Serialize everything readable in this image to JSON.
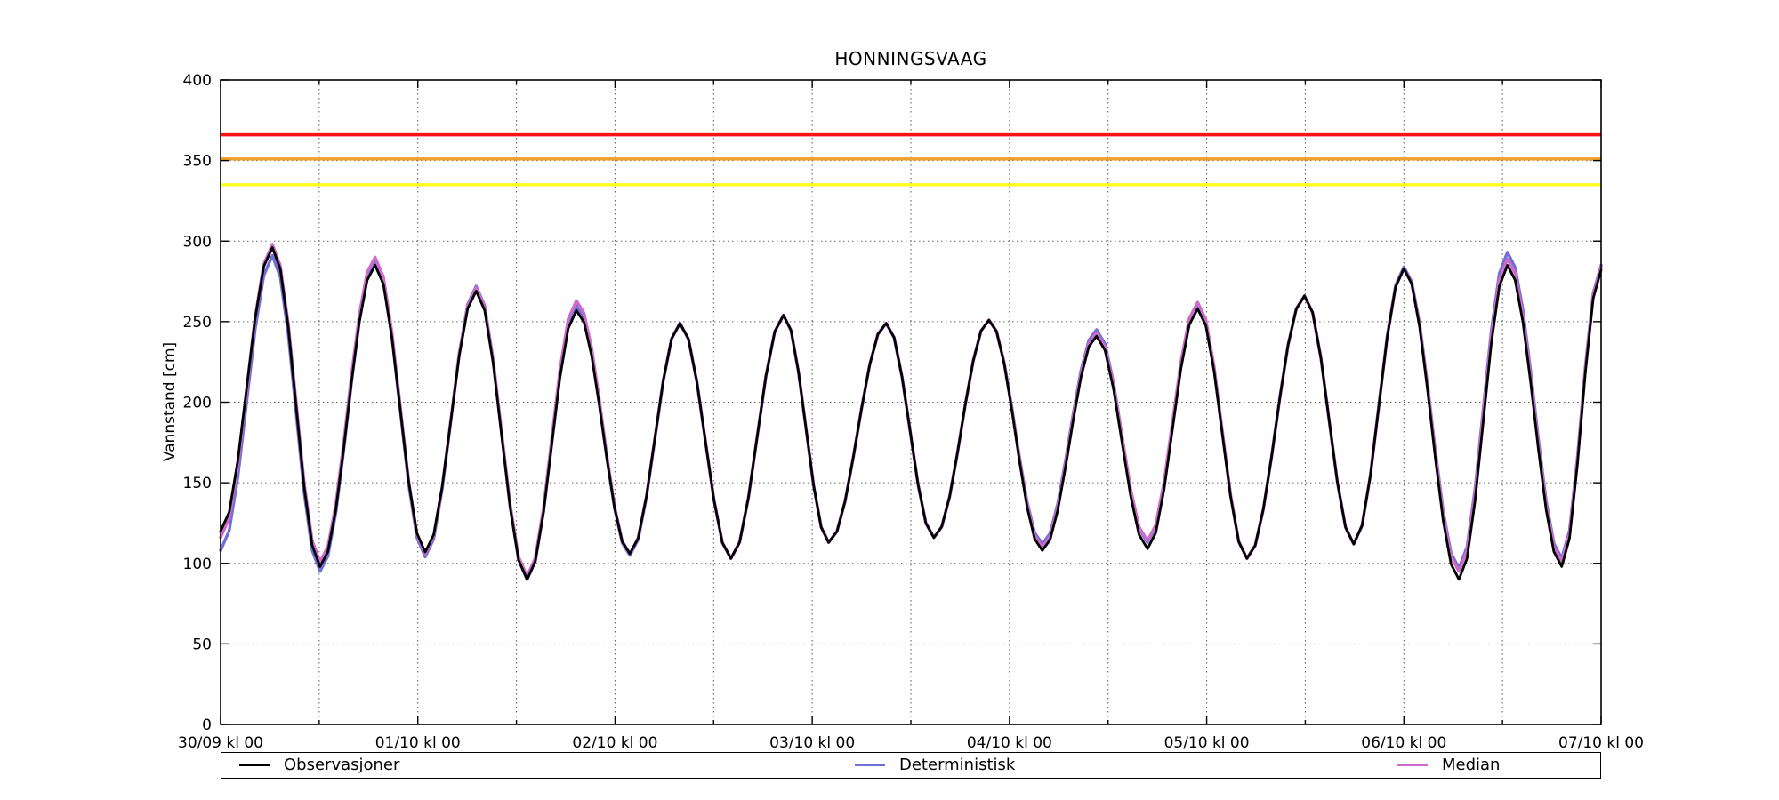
{
  "title": "HONNINGSVAAG",
  "y_axis": {
    "label": "Vannstand [cm]",
    "min": 0,
    "max": 400,
    "tick_step": 50,
    "tick_labels": [
      "0",
      "50",
      "100",
      "150",
      "200",
      "250",
      "300",
      "350",
      "400"
    ]
  },
  "x_axis": {
    "tick_labels": [
      "30/09 kl 00",
      "01/10 kl 00",
      "02/10 kl 00",
      "03/10 kl 00",
      "04/10 kl 00",
      "05/10 kl 00",
      "06/10 kl 00",
      "07/10 kl 00"
    ],
    "hours_total": 168,
    "hours_per_day": 24,
    "grid_step_hours": 12
  },
  "legend": {
    "items": [
      {
        "label": "Observasjoner",
        "color": "#000000"
      },
      {
        "label": "Deterministisk",
        "color": "#6f6fd6"
      },
      {
        "label": "Median",
        "color": "#cf6bcb"
      }
    ]
  },
  "chart_data": {
    "type": "line",
    "title": "HONNINGSVAAG",
    "xlabel": "",
    "ylabel": "Vannstand [cm]",
    "ylim": [
      0,
      400
    ],
    "grid": "on",
    "legend_position": "bottom",
    "threshold_lines": [
      {
        "name": "red-level",
        "value": 366,
        "color": "#f81414"
      },
      {
        "name": "orange-level",
        "value": 351,
        "color": "#f0a028"
      },
      {
        "name": "yellow-level",
        "value": 335,
        "color": "#ffff1e"
      }
    ],
    "x_unit": "hours since 30/09 kl 00",
    "series": [
      {
        "name": "Observasjoner",
        "color": "#000000",
        "extrema_h_cm": [
          [
            0,
            120
          ],
          [
            6.3,
            296
          ],
          [
            12.1,
            98
          ],
          [
            18.8,
            285
          ],
          [
            24.9,
            107
          ],
          [
            31.1,
            269
          ],
          [
            37.3,
            90
          ],
          [
            43.3,
            257
          ],
          [
            49.8,
            106
          ],
          [
            55.9,
            249
          ],
          [
            62.1,
            103
          ],
          [
            68.5,
            254
          ],
          [
            74.0,
            113
          ],
          [
            81.0,
            249
          ],
          [
            86.8,
            116
          ],
          [
            93.5,
            251
          ],
          [
            100.0,
            108
          ],
          [
            106.6,
            241
          ],
          [
            112.8,
            109
          ],
          [
            118.9,
            258
          ],
          [
            124.9,
            103
          ],
          [
            131.9,
            266
          ],
          [
            137.9,
            112
          ],
          [
            144.0,
            283
          ],
          [
            150.7,
            90
          ],
          [
            156.6,
            285
          ],
          [
            163.2,
            98
          ],
          [
            168,
            282
          ]
        ]
      },
      {
        "name": "Deterministisk",
        "color": "#6f6fd6",
        "extrema_h_cm": [
          [
            0,
            108
          ],
          [
            6.3,
            291
          ],
          [
            12.1,
            95
          ],
          [
            18.8,
            287
          ],
          [
            24.9,
            104
          ],
          [
            31.1,
            272
          ],
          [
            37.3,
            90
          ],
          [
            43.3,
            260
          ],
          [
            49.8,
            105
          ],
          [
            55.9,
            249
          ],
          [
            62.1,
            103
          ],
          [
            68.5,
            254
          ],
          [
            74.0,
            113
          ],
          [
            81.0,
            249
          ],
          [
            86.8,
            116
          ],
          [
            93.5,
            251
          ],
          [
            100.0,
            112
          ],
          [
            106.6,
            245
          ],
          [
            112.8,
            113
          ],
          [
            118.9,
            260
          ],
          [
            124.9,
            103
          ],
          [
            131.9,
            266
          ],
          [
            137.9,
            112
          ],
          [
            144.0,
            284
          ],
          [
            150.7,
            97
          ],
          [
            156.6,
            293
          ],
          [
            163.2,
            103
          ],
          [
            168,
            285
          ]
        ]
      },
      {
        "name": "Median",
        "color": "#cf6bcb",
        "extrema_h_cm": [
          [
            0,
            116
          ],
          [
            6.3,
            298
          ],
          [
            12.1,
            101
          ],
          [
            18.8,
            290
          ],
          [
            24.9,
            106
          ],
          [
            31.1,
            271
          ],
          [
            37.3,
            92
          ],
          [
            43.3,
            263
          ],
          [
            49.8,
            106
          ],
          [
            55.9,
            249
          ],
          [
            62.1,
            103
          ],
          [
            68.5,
            254
          ],
          [
            74.0,
            113
          ],
          [
            81.0,
            249
          ],
          [
            86.8,
            116
          ],
          [
            93.5,
            251
          ],
          [
            100.0,
            110
          ],
          [
            106.6,
            243
          ],
          [
            112.8,
            114
          ],
          [
            118.9,
            262
          ],
          [
            124.9,
            103
          ],
          [
            131.9,
            266
          ],
          [
            137.9,
            112
          ],
          [
            144.0,
            283
          ],
          [
            150.7,
            95
          ],
          [
            156.6,
            289
          ],
          [
            163.2,
            101
          ],
          [
            168,
            284
          ]
        ]
      }
    ]
  }
}
